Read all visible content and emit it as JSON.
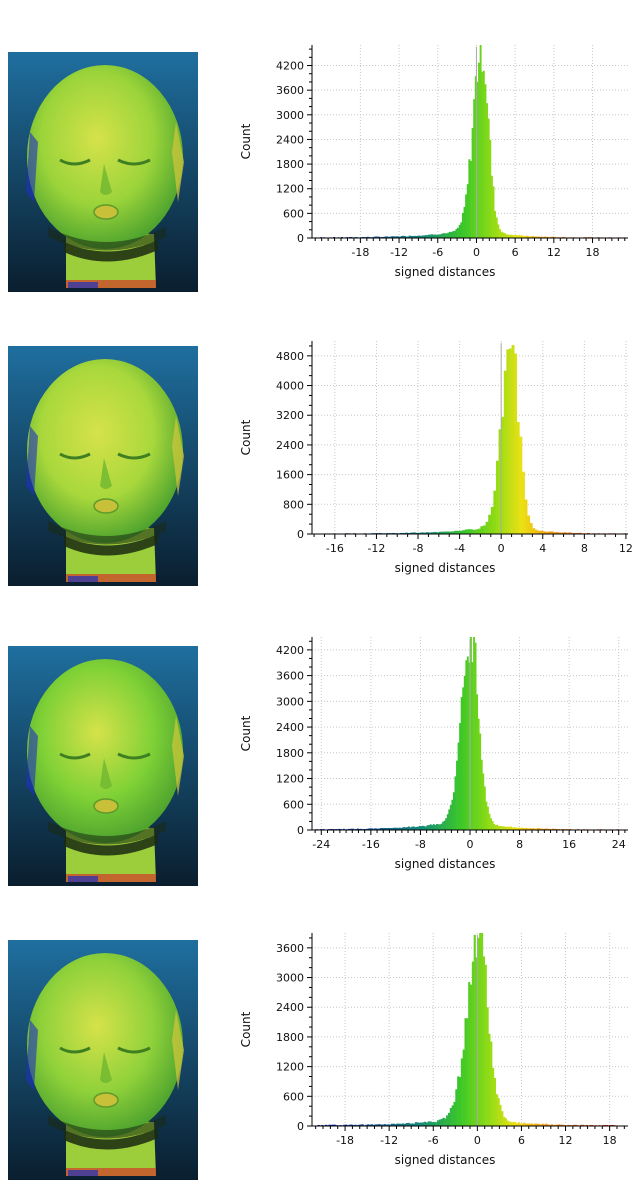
{
  "chart_data": [
    {
      "type": "bar",
      "xlabel": "signed distances",
      "ylabel": "Count",
      "xlim": [
        -25.5,
        23.5
      ],
      "ylim": [
        0,
        4700
      ],
      "xticks": [
        -18,
        -12,
        -6,
        0,
        6,
        12,
        18
      ],
      "yticks": [
        0,
        600,
        1200,
        1800,
        2400,
        3000,
        3600,
        4200
      ],
      "grid": true,
      "peak": {
        "x": 0.8,
        "count": 4650
      },
      "spread": 1.3,
      "left_tail": 6,
      "right_tail": 4,
      "tail_noise": 18,
      "range": [
        -25,
        23
      ]
    },
    {
      "type": "bar",
      "xlabel": "signed distances",
      "ylabel": "Count",
      "xlim": [
        -18.2,
        12.2
      ],
      "ylim": [
        0,
        5200
      ],
      "xticks": [
        -16,
        -12,
        -8,
        -4,
        0,
        4,
        8,
        12
      ],
      "yticks": [
        0,
        800,
        1600,
        2400,
        3200,
        4000,
        4800
      ],
      "grid": true,
      "peak": {
        "x": 1.0,
        "count": 5050
      },
      "spread": 0.9,
      "left_tail": 4,
      "right_tail": 2.5,
      "tail_noise": 14,
      "range": [
        -17.5,
        12
      ]
    },
    {
      "type": "bar",
      "xlabel": "signed distances",
      "ylabel": "Count",
      "xlim": [
        -25.5,
        25.5
      ],
      "ylim": [
        0,
        4500
      ],
      "xticks": [
        -24,
        -16,
        -8,
        0,
        8,
        16,
        24
      ],
      "yticks": [
        0,
        600,
        1200,
        1800,
        2400,
        3000,
        3600,
        4200
      ],
      "grid": true,
      "peak": {
        "x": 0.2,
        "count": 4500
      },
      "spread": 1.5,
      "left_tail": 7,
      "right_tail": 5,
      "tail_noise": 16,
      "range": [
        -25,
        24
      ]
    },
    {
      "type": "bar",
      "xlabel": "signed distances",
      "ylabel": "Count",
      "xlim": [
        -22.5,
        20.5
      ],
      "ylim": [
        0,
        3900
      ],
      "xticks": [
        -18,
        -12,
        -6,
        0,
        6,
        12,
        18
      ],
      "yticks": [
        0,
        600,
        1200,
        1800,
        2400,
        3000,
        3600
      ],
      "grid": true,
      "peak": {
        "x": 0.2,
        "count": 3750
      },
      "spread": 1.6,
      "left_tail": 6,
      "right_tail": 4.5,
      "tail_noise": 20,
      "range": [
        -22,
        19
      ]
    }
  ],
  "images": [
    {
      "kind": "face-distance-map",
      "colors": {
        "background_top": "#1f6f9f",
        "background_bottom": "#0a1e2e",
        "face": "#9bd43a"
      }
    },
    {
      "kind": "face-distance-map",
      "colors": {
        "background_top": "#1f6f9f",
        "background_bottom": "#0a1e2e",
        "face": "#a8d83c"
      }
    },
    {
      "kind": "face-distance-map",
      "colors": {
        "background_top": "#1f6f9f",
        "background_bottom": "#0a1e2e",
        "face": "#7fd136"
      }
    },
    {
      "kind": "face-distance-map",
      "colors": {
        "background_top": "#1f6f9f",
        "background_bottom": "#0a1e2e",
        "face": "#8fd13a"
      }
    }
  ]
}
